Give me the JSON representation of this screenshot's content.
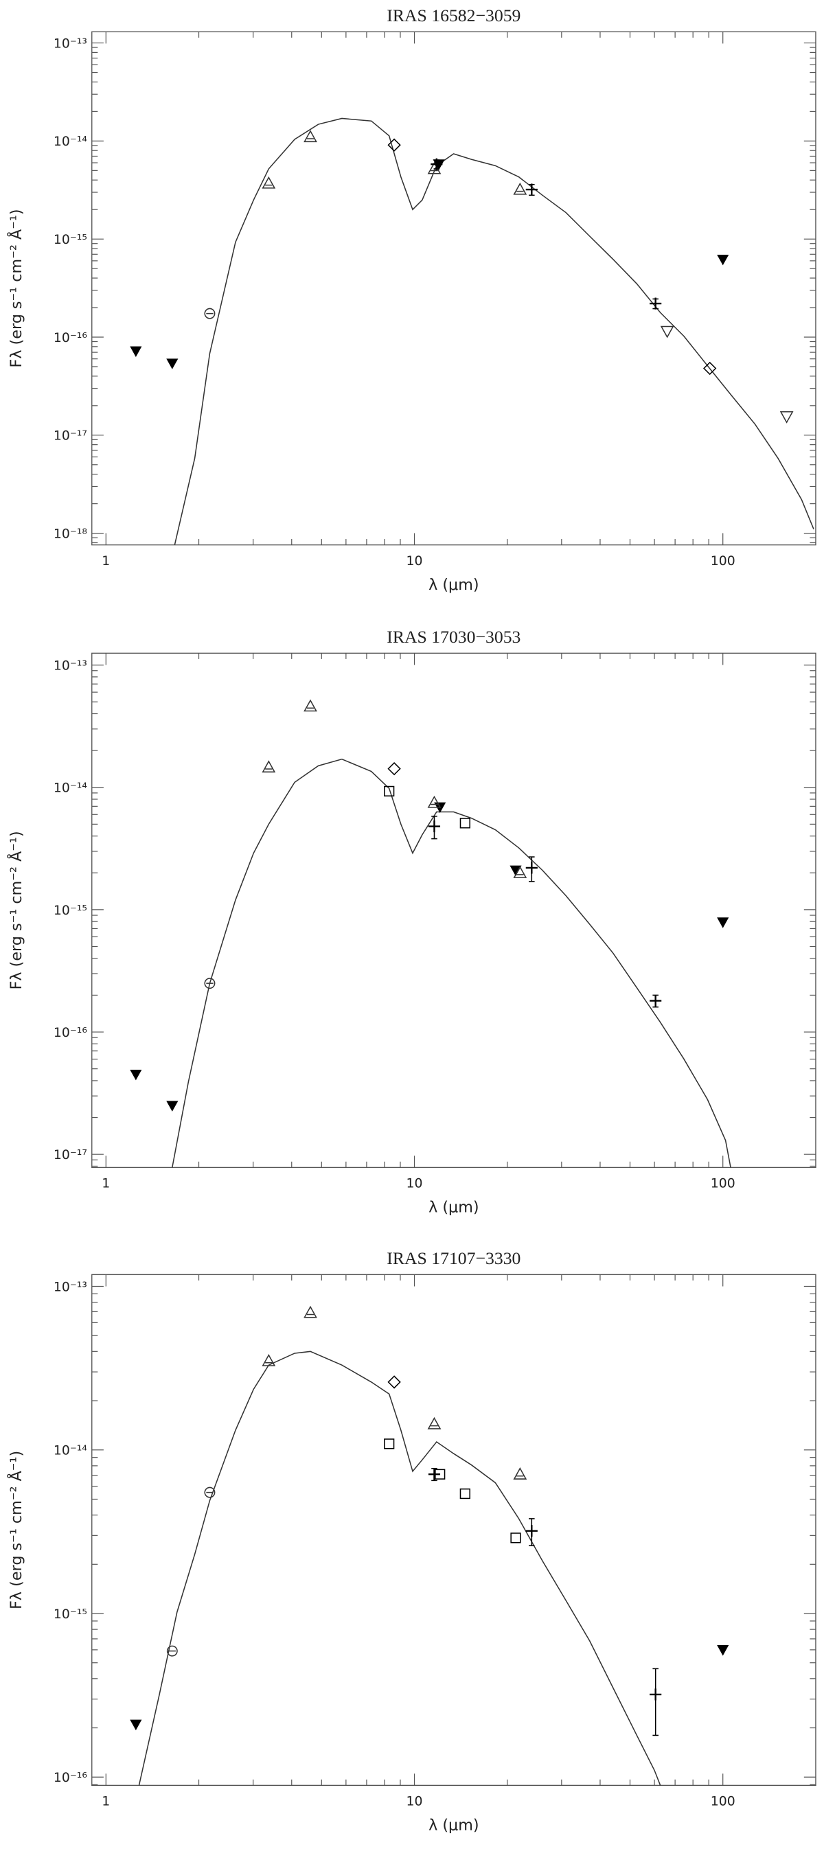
{
  "chart_data": [
    {
      "type": "scatter",
      "title": "IRAS 16582−3059",
      "xlabel": "λ (μm)",
      "ylabel": "Fλ  (erg s⁻¹ cm⁻² Å⁻¹)",
      "xscale": "log",
      "yscale": "log",
      "minor_ticks": true,
      "xlim": [
        0.9,
        200
      ],
      "ylim": [
        7.6e-19,
        1.3e-13
      ],
      "xticks": [
        1,
        10,
        100
      ],
      "yticks": [
        {
          "value": 1e-13,
          "label": "10⁻¹³"
        },
        {
          "value": 1e-14,
          "label": "10⁻¹⁴"
        },
        {
          "value": 1e-15,
          "label": "10⁻¹⁵"
        },
        {
          "value": 1e-16,
          "label": "10⁻¹⁶"
        },
        {
          "value": 1e-17,
          "label": "10⁻¹⁷"
        },
        {
          "value": 1e-18,
          "label": "10⁻¹⁸"
        }
      ],
      "model": {
        "color": "#333333",
        "x": [
          1.67,
          1.94,
          2.17,
          2.63,
          3.01,
          3.37,
          4.09,
          4.88,
          5.82,
          7.25,
          8.28,
          9.04,
          9.87,
          10.6,
          11.8,
          13.4,
          15.3,
          18.3,
          21.8,
          26,
          31,
          37,
          44.1,
          52.6,
          62.7,
          74.8,
          89.2,
          106,
          127,
          151,
          180,
          197
        ],
        "values": [
          7.6e-19,
          5.8e-18,
          6.8e-17,
          9.3e-16,
          2.5e-15,
          5.2e-15,
          1.04e-14,
          1.48e-14,
          1.7e-14,
          1.6e-14,
          1.13e-14,
          4.3e-15,
          2e-15,
          2.5e-15,
          5.6e-15,
          7.4e-15,
          6.5e-15,
          5.6e-15,
          4.3e-15,
          2.8e-15,
          1.86e-15,
          1.07e-15,
          6.2e-16,
          3.5e-16,
          1.78e-16,
          1.02e-16,
          5.1e-17,
          2.6e-17,
          1.3e-17,
          5.8e-18,
          2.2e-18,
          1.1e-18
        ]
      },
      "series": [
        {
          "marker": "triangle-down-filled",
          "color": "#000000",
          "x": [
            1.25,
            1.64,
            12,
            100
          ],
          "values": [
            7.2e-17,
            5.4e-17,
            5.8e-15,
            6.2e-16
          ]
        },
        {
          "marker": "circle",
          "color": "#333333",
          "x": [
            2.17
          ],
          "values": [
            1.74e-16
          ]
        },
        {
          "marker": "triangle-up",
          "color": "#333333",
          "x": [
            3.37,
            4.6,
            11.6,
            22
          ],
          "values": [
            3.7e-15,
            1.1e-14,
            5.2e-15,
            3.2e-15
          ]
        },
        {
          "marker": "diamond",
          "color": "#000000",
          "x": [
            8.6,
            90.7
          ],
          "values": [
            9.1e-15,
            4.8e-17
          ]
        },
        {
          "marker": "cross",
          "color": "#000000",
          "x": [
            11.8,
            24,
            60.5
          ],
          "values": [
            5.8e-15,
            3.2e-15,
            2.2e-16
          ],
          "errors": [
            6e-16,
            4e-16,
            2.5e-17
          ]
        },
        {
          "marker": "triangle-down",
          "color": "#333333",
          "x": [
            66,
            161
          ],
          "values": [
            1.15e-16,
            1.55e-17
          ]
        }
      ]
    },
    {
      "type": "scatter",
      "title": "IRAS 17030−3053",
      "xlabel": "λ (μm)",
      "ylabel": "Fλ  (erg s⁻¹ cm⁻² Å⁻¹)",
      "xscale": "log",
      "yscale": "log",
      "minor_ticks": true,
      "xlim": [
        0.9,
        200
      ],
      "ylim": [
        7.8e-18,
        1.25e-13
      ],
      "xticks": [
        1,
        10,
        100
      ],
      "yticks": [
        {
          "value": 1e-13,
          "label": "10⁻¹³"
        },
        {
          "value": 1e-14,
          "label": "10⁻¹⁴"
        },
        {
          "value": 1e-15,
          "label": "10⁻¹⁵"
        },
        {
          "value": 1e-16,
          "label": "10⁻¹⁶"
        },
        {
          "value": 1e-17,
          "label": "10⁻¹⁷"
        }
      ],
      "model": {
        "color": "#333333",
        "x": [
          1.64,
          1.85,
          2.17,
          2.63,
          3.01,
          3.37,
          4.09,
          4.88,
          5.82,
          7.25,
          8.28,
          9.04,
          9.87,
          10.6,
          11.8,
          13.4,
          15.3,
          18.3,
          21.8,
          26,
          31,
          37,
          44.1,
          52.6,
          62.7,
          74.8,
          89.2,
          102,
          106
        ],
        "values": [
          7.8e-18,
          3.9e-17,
          2.5e-16,
          1.2e-15,
          2.9e-15,
          5e-15,
          1.1e-14,
          1.5e-14,
          1.7e-14,
          1.35e-14,
          9.8e-15,
          5e-15,
          2.9e-15,
          4.1e-15,
          6.3e-15,
          6.3e-15,
          5.6e-15,
          4.5e-15,
          3.2e-15,
          2.1e-15,
          1.3e-15,
          7.6e-16,
          4.4e-16,
          2.3e-16,
          1.2e-16,
          6e-17,
          2.8e-17,
          1.3e-17,
          7.8e-18
        ]
      },
      "series": [
        {
          "marker": "triangle-down-filled",
          "color": "#000000",
          "x": [
            1.25,
            1.64,
            12.1,
            21.3,
            100
          ],
          "values": [
            4.5e-17,
            2.5e-17,
            6.9e-15,
            2.1e-15,
            7.9e-16
          ]
        },
        {
          "marker": "circle",
          "color": "#333333",
          "x": [
            2.17
          ],
          "values": [
            2.5e-16
          ]
        },
        {
          "marker": "triangle-up",
          "color": "#333333",
          "x": [
            3.37,
            4.6,
            11.6,
            22
          ],
          "values": [
            1.46e-14,
            4.6e-14,
            7.5e-15,
            2e-15
          ]
        },
        {
          "marker": "diamond",
          "color": "#000000",
          "x": [
            8.6
          ],
          "values": [
            1.42e-14
          ]
        },
        {
          "marker": "square",
          "color": "#000000",
          "x": [
            8.28,
            14.6
          ],
          "values": [
            9.3e-15,
            5.1e-15
          ]
        },
        {
          "marker": "cross",
          "color": "#000000",
          "x": [
            11.6,
            24,
            60.5
          ],
          "values": [
            4.8e-15,
            2.2e-15,
            1.8e-16
          ],
          "errors": [
            1e-15,
            5e-16,
            2e-17
          ]
        }
      ]
    },
    {
      "type": "scatter",
      "title": "IRAS 17107−3330",
      "xlabel": "λ (μm)",
      "ylabel": "Fλ  (erg s⁻¹ cm⁻² Å⁻¹)",
      "xscale": "log",
      "yscale": "log",
      "minor_ticks": true,
      "xlim": [
        0.9,
        200
      ],
      "ylim": [
        8.9e-17,
        1.18e-13
      ],
      "xticks": [
        1,
        10,
        100
      ],
      "yticks": [
        {
          "value": 1e-13,
          "label": "10⁻¹³"
        },
        {
          "value": 1e-14,
          "label": "10⁻¹⁴"
        },
        {
          "value": 1e-15,
          "label": "10⁻¹⁵"
        },
        {
          "value": 1e-16,
          "label": "10⁻¹⁶"
        }
      ],
      "model": {
        "color": "#333333",
        "x": [
          1.28,
          1.49,
          1.7,
          1.94,
          2.17,
          2.63,
          3.01,
          3.37,
          4.09,
          4.6,
          5.82,
          7.25,
          8.28,
          9.04,
          9.87,
          10.6,
          11.8,
          13.4,
          15.3,
          18.3,
          21.8,
          26,
          31,
          37,
          44.1,
          52.6,
          60,
          62.7
        ],
        "values": [
          8.9e-17,
          3.2e-16,
          1.02e-15,
          2.3e-15,
          4.9e-15,
          1.32e-14,
          2.35e-14,
          3.3e-14,
          3.9e-14,
          4e-14,
          3.3e-14,
          2.6e-14,
          2.2e-14,
          1.32e-14,
          7.4e-15,
          8.7e-15,
          1.12e-14,
          9.5e-15,
          8.1e-15,
          6.3e-15,
          3.8e-15,
          2.1e-15,
          1.2e-15,
          6.8e-16,
          3.5e-16,
          1.8e-16,
          1.1e-16,
          8.9e-17
        ]
      },
      "series": [
        {
          "marker": "triangle-down-filled",
          "color": "#000000",
          "x": [
            1.25,
            100
          ],
          "values": [
            2.1e-16,
            6e-16
          ]
        },
        {
          "marker": "circle",
          "color": "#333333",
          "x": [
            1.64,
            2.17
          ],
          "values": [
            5.9e-16,
            5.5e-15
          ]
        },
        {
          "marker": "triangle-up",
          "color": "#333333",
          "x": [
            3.37,
            4.6,
            11.6,
            22
          ],
          "values": [
            3.5e-14,
            6.9e-14,
            1.44e-14,
            7.1e-15
          ]
        },
        {
          "marker": "diamond",
          "color": "#000000",
          "x": [
            8.6
          ],
          "values": [
            2.6e-14
          ]
        },
        {
          "marker": "square",
          "color": "#000000",
          "x": [
            8.28,
            12.1,
            14.6,
            21.3
          ],
          "values": [
            1.09e-14,
            7.1e-15,
            5.4e-15,
            2.9e-15
          ]
        },
        {
          "marker": "cross",
          "color": "#000000",
          "x": [
            11.6,
            24,
            60.5
          ],
          "values": [
            7.1e-15,
            3.2e-15,
            3.2e-16
          ],
          "errors": [
            6e-16,
            6e-16,
            1.4e-16
          ]
        }
      ]
    }
  ]
}
